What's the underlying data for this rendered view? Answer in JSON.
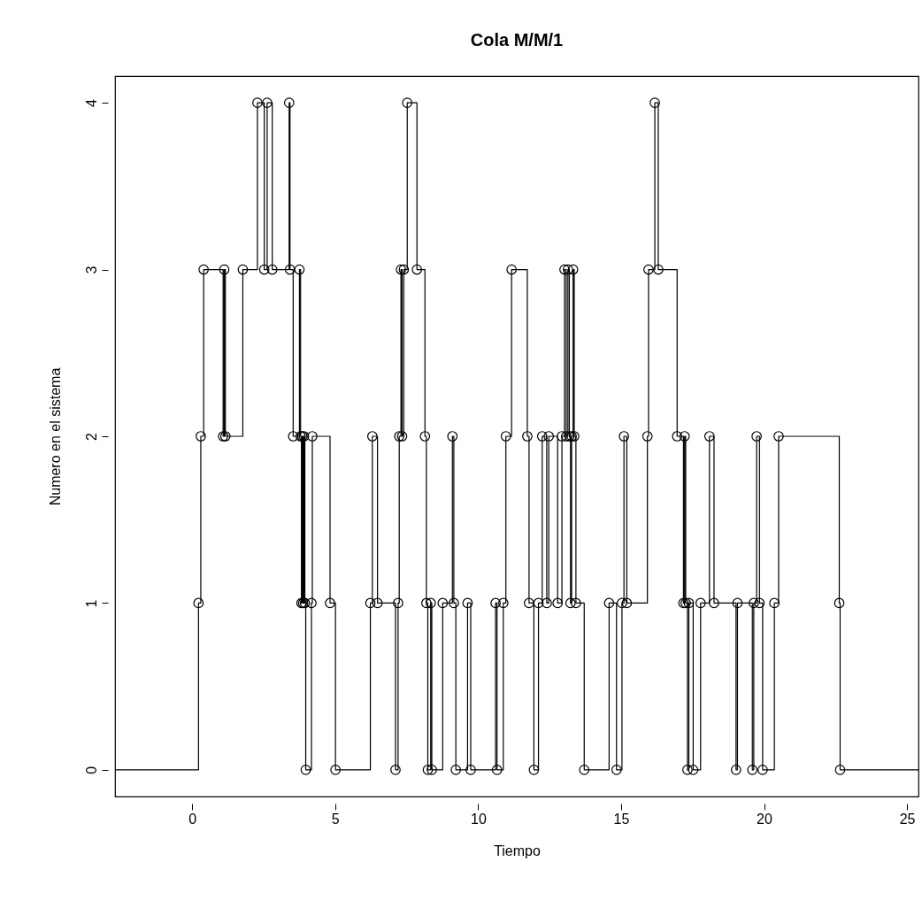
{
  "chart_data": {
    "type": "step",
    "title": "Cola M/M/1",
    "xlabel": "Tiempo",
    "ylabel": "Numero en el sistema",
    "xlim": [
      -2.7,
      25.4
    ],
    "ylim": [
      -0.16,
      4.16
    ],
    "xticks": [
      0,
      5,
      10,
      15,
      20,
      25
    ],
    "yticks": [
      0,
      1,
      2,
      3,
      4
    ],
    "grid": false,
    "series": [
      {
        "color": "#000000",
        "marker": "none",
        "x": [
          -2.7,
          0.22,
          0.3,
          0.4,
          1.08,
          1.12,
          1.16,
          1.77,
          2.28,
          2.52,
          2.62,
          2.8,
          3.39,
          3.42,
          3.53,
          3.75,
          3.79,
          3.82,
          3.85,
          3.88,
          3.91,
          3.94,
          3.97,
          4.17,
          4.2,
          4.82,
          5.01,
          6.23,
          6.3,
          6.48,
          7.11,
          7.2,
          7.24,
          7.3,
          7.34,
          7.4,
          7.52,
          7.86,
          8.14,
          8.19,
          8.24,
          8.34,
          8.38,
          8.76,
          9.1,
          9.15,
          9.22,
          9.63,
          9.74,
          10.61,
          10.66,
          10.88,
          10.97,
          11.17,
          11.72,
          11.78,
          11.95,
          12.11,
          12.24,
          12.4,
          12.47,
          12.78,
          12.93,
          13.02,
          13.08,
          13.14,
          13.19,
          13.23,
          13.27,
          13.32,
          13.36,
          13.42,
          13.71,
          14.58,
          14.84,
          15.03,
          15.1,
          15.2,
          15.92,
          15.96,
          16.18,
          16.3,
          16.96,
          17.18,
          17.22,
          17.26,
          17.32,
          17.37,
          17.52,
          17.78,
          18.09,
          18.25,
          19.02,
          19.07,
          19.59,
          19.64,
          19.74,
          19.84,
          19.95,
          20.36,
          20.51,
          22.63,
          22.66,
          25.4
        ],
        "values": [
          0,
          1,
          2,
          3,
          2,
          3,
          2,
          3,
          4,
          3,
          4,
          3,
          4,
          3,
          2,
          3,
          2,
          1,
          2,
          1,
          2,
          1,
          0,
          1,
          2,
          1,
          0,
          1,
          2,
          1,
          0,
          1,
          2,
          3,
          2,
          3,
          4,
          3,
          2,
          1,
          0,
          1,
          0,
          1,
          2,
          1,
          0,
          1,
          0,
          1,
          0,
          1,
          2,
          3,
          2,
          1,
          0,
          1,
          2,
          1,
          2,
          1,
          2,
          3,
          2,
          3,
          2,
          1,
          2,
          3,
          2,
          1,
          0,
          1,
          0,
          1,
          2,
          1,
          2,
          3,
          4,
          3,
          2,
          1,
          2,
          1,
          0,
          1,
          0,
          1,
          2,
          1,
          0,
          1,
          0,
          1,
          2,
          1,
          0,
          1,
          2,
          1,
          0,
          0
        ]
      },
      {
        "type": "scatter",
        "color": "#000000",
        "marker": "circle",
        "x": [
          0.22,
          0.3,
          0.4,
          1.08,
          1.12,
          1.16,
          1.77,
          2.28,
          2.52,
          2.62,
          2.8,
          3.39,
          3.42,
          3.53,
          3.75,
          3.79,
          3.82,
          3.85,
          3.88,
          3.91,
          3.94,
          3.97,
          4.17,
          4.2,
          4.82,
          5.01,
          6.23,
          6.3,
          6.48,
          7.11,
          7.2,
          7.24,
          7.3,
          7.34,
          7.4,
          7.52,
          7.86,
          8.14,
          8.19,
          8.24,
          8.34,
          8.38,
          8.76,
          9.1,
          9.15,
          9.22,
          9.63,
          9.74,
          10.61,
          10.66,
          10.88,
          10.97,
          11.17,
          11.72,
          11.78,
          11.95,
          12.11,
          12.24,
          12.4,
          12.47,
          12.78,
          12.93,
          13.02,
          13.08,
          13.14,
          13.19,
          13.23,
          13.27,
          13.32,
          13.36,
          13.42,
          13.71,
          14.58,
          14.84,
          15.03,
          15.1,
          15.2,
          15.92,
          15.96,
          16.18,
          16.3,
          16.96,
          17.18,
          17.22,
          17.26,
          17.32,
          17.37,
          17.52,
          17.78,
          18.09,
          18.25,
          19.02,
          19.07,
          19.59,
          19.64,
          19.74,
          19.84,
          19.95,
          20.36,
          20.51,
          22.63,
          22.66
        ],
        "values": [
          1,
          2,
          3,
          2,
          3,
          2,
          3,
          4,
          3,
          4,
          3,
          4,
          3,
          2,
          3,
          2,
          1,
          2,
          1,
          2,
          1,
          0,
          1,
          2,
          1,
          0,
          1,
          2,
          1,
          0,
          1,
          2,
          3,
          2,
          3,
          4,
          3,
          2,
          1,
          0,
          1,
          0,
          1,
          2,
          1,
          0,
          1,
          0,
          1,
          0,
          1,
          2,
          3,
          2,
          1,
          0,
          1,
          2,
          1,
          2,
          1,
          2,
          3,
          2,
          3,
          2,
          1,
          2,
          3,
          2,
          1,
          0,
          1,
          0,
          1,
          2,
          1,
          2,
          3,
          4,
          3,
          2,
          1,
          2,
          1,
          0,
          1,
          0,
          1,
          2,
          1,
          0,
          1,
          0,
          1,
          2,
          1,
          0,
          1,
          2,
          1,
          0
        ]
      }
    ]
  }
}
